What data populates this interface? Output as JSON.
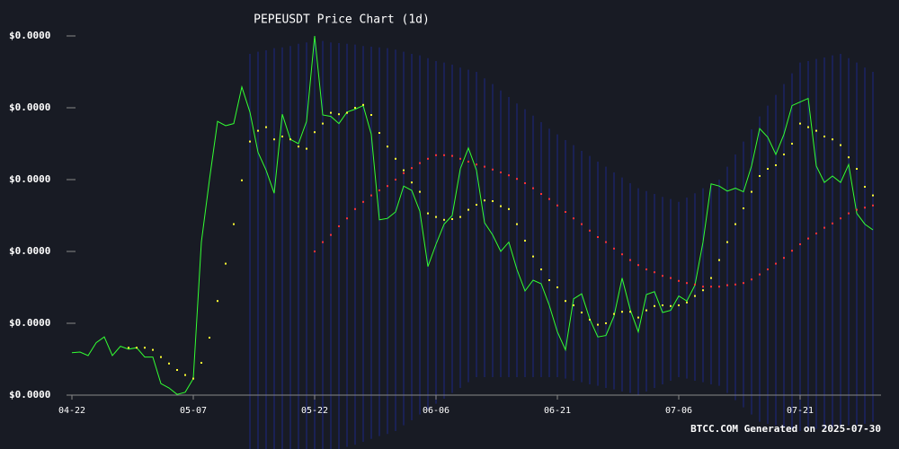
{
  "chart_data": {
    "type": "line",
    "title": "PEPEUSDT Price Chart (1d)",
    "annotation": "BTCC.COM Generated on 2025-07-30",
    "x": [
      "04-22",
      "04-23",
      "04-24",
      "04-25",
      "04-26",
      "04-27",
      "04-28",
      "04-29",
      "04-30",
      "05-01",
      "05-02",
      "05-03",
      "05-04",
      "05-05",
      "05-06",
      "05-07",
      "05-08",
      "05-09",
      "05-10",
      "05-11",
      "05-12",
      "05-13",
      "05-14",
      "05-15",
      "05-16",
      "05-17",
      "05-18",
      "05-19",
      "05-20",
      "05-21",
      "05-22",
      "05-23",
      "05-24",
      "05-25",
      "05-26",
      "05-27",
      "05-28",
      "05-29",
      "05-30",
      "05-31",
      "06-01",
      "06-02",
      "06-03",
      "06-04",
      "06-05",
      "06-06",
      "06-07",
      "06-08",
      "06-09",
      "06-10",
      "06-11",
      "06-12",
      "06-13",
      "06-14",
      "06-15",
      "06-16",
      "06-17",
      "06-18",
      "06-19",
      "06-20",
      "06-21",
      "06-22",
      "06-23",
      "06-24",
      "06-25",
      "06-26",
      "06-27",
      "06-28",
      "06-29",
      "06-30",
      "07-01",
      "07-02",
      "07-03",
      "07-04",
      "07-05",
      "07-06",
      "07-07",
      "07-08",
      "07-09",
      "07-10",
      "07-11",
      "07-12",
      "07-13",
      "07-14",
      "07-15",
      "07-16",
      "07-17",
      "07-18",
      "07-19",
      "07-20",
      "07-21",
      "07-22",
      "07-23",
      "07-24",
      "07-25",
      "07-26",
      "07-27",
      "07-28",
      "07-29",
      "07-30"
    ],
    "xticks": [
      "04-22",
      "05-07",
      "05-22",
      "06-06",
      "06-21",
      "07-06",
      "07-21"
    ],
    "ylim": [
      8e-06,
      1.3e-05
    ],
    "yticks": [
      {
        "value": 8e-06,
        "label": "$0.0000"
      },
      {
        "value": 9e-06,
        "label": "$0.0000"
      },
      {
        "value": 1e-05,
        "label": "$0.0000"
      },
      {
        "value": 1.1e-05,
        "label": "$0.0000"
      },
      {
        "value": 1.2e-05,
        "label": "$0.0000"
      },
      {
        "value": 1.3e-05,
        "label": "$0.0000"
      }
    ],
    "grid": false,
    "series": [
      {
        "style": "line",
        "color": "#33ff33",
        "values": [
          8.59e-06,
          8.6e-06,
          8.55e-06,
          8.73e-06,
          8.81e-06,
          8.55e-06,
          8.68e-06,
          8.64e-06,
          8.66e-06,
          8.53e-06,
          8.53e-06,
          8.16e-06,
          8.1e-06,
          8.01e-06,
          8.04e-06,
          8.23e-06,
          1.013e-05,
          1.1e-05,
          1.181e-05,
          1.175e-05,
          1.178e-05,
          1.229e-05,
          1.194e-05,
          1.138e-05,
          1.113e-05,
          1.081e-05,
          1.191e-05,
          1.156e-05,
          1.15e-05,
          1.181e-05,
          1.3e-05,
          1.19e-05,
          1.188e-05,
          1.178e-05,
          1.194e-05,
          1.198e-05,
          1.203e-05,
          1.163e-05,
          1.044e-05,
          1.046e-05,
          1.055e-05,
          1.091e-05,
          1.085e-05,
          1.056e-05,
          9.79e-06,
          1.01e-05,
          1.038e-05,
          1.05e-05,
          1.115e-05,
          1.144e-05,
          1.113e-05,
          1.04e-05,
          1.023e-05,
          1e-05,
          1.013e-05,
          9.75e-06,
          9.45e-06,
          9.6e-06,
          9.55e-06,
          9.25e-06,
          8.88e-06,
          8.63e-06,
          9.34e-06,
          9.41e-06,
          9.06e-06,
          8.81e-06,
          8.83e-06,
          9.1e-06,
          9.63e-06,
          9.19e-06,
          8.88e-06,
          9.4e-06,
          9.44e-06,
          9.15e-06,
          9.18e-06,
          9.38e-06,
          9.31e-06,
          9.53e-06,
          1.013e-05,
          1.094e-05,
          1.091e-05,
          1.084e-05,
          1.088e-05,
          1.083e-05,
          1.119e-05,
          1.171e-05,
          1.159e-05,
          1.135e-05,
          1.163e-05,
          1.203e-05,
          1.208e-05,
          1.213e-05,
          1.119e-05,
          1.096e-05,
          1.105e-05,
          1.096e-05,
          1.121e-05,
          1.053e-05,
          1.038e-05,
          1.03e-05
        ]
      },
      {
        "style": "dots",
        "color": "#ffff33",
        "values": [
          null,
          null,
          null,
          null,
          null,
          null,
          null,
          8.66e-06,
          8.66e-06,
          8.66e-06,
          8.63e-06,
          8.53e-06,
          8.44e-06,
          8.35e-06,
          8.28e-06,
          8.23e-06,
          8.45e-06,
          8.8e-06,
          9.31e-06,
          9.83e-06,
          1.038e-05,
          1.099e-05,
          1.153e-05,
          1.168e-05,
          1.173e-05,
          1.156e-05,
          1.16e-05,
          1.156e-05,
          1.146e-05,
          1.143e-05,
          1.166e-05,
          1.178e-05,
          1.193e-05,
          1.191e-05,
          1.193e-05,
          1.2e-05,
          1.204e-05,
          1.19e-05,
          1.165e-05,
          1.146e-05,
          1.129e-05,
          1.113e-05,
          1.096e-05,
          1.083e-05,
          1.053e-05,
          1.048e-05,
          1.044e-05,
          1.045e-05,
          1.048e-05,
          1.058e-05,
          1.065e-05,
          1.071e-05,
          1.07e-05,
          1.063e-05,
          1.059e-05,
          1.038e-05,
          1.015e-05,
          9.93e-06,
          9.75e-06,
          9.6e-06,
          9.5e-06,
          9.31e-06,
          9.25e-06,
          9.15e-06,
          9.05e-06,
          8.98e-06,
          9e-06,
          9.13e-06,
          9.16e-06,
          9.16e-06,
          9.08e-06,
          9.18e-06,
          9.24e-06,
          9.25e-06,
          9.24e-06,
          9.25e-06,
          9.29e-06,
          9.38e-06,
          9.46e-06,
          9.63e-06,
          9.88e-06,
          1.013e-05,
          1.038e-05,
          1.06e-05,
          1.083e-05,
          1.105e-05,
          1.115e-05,
          1.12e-05,
          1.135e-05,
          1.15e-05,
          1.178e-05,
          1.173e-05,
          1.168e-05,
          1.16e-05,
          1.156e-05,
          1.148e-05,
          1.131e-05,
          1.115e-05,
          1.09e-05,
          1.078e-05
        ]
      },
      {
        "style": "dots",
        "color": "#ff3333",
        "values": [
          null,
          null,
          null,
          null,
          null,
          null,
          null,
          null,
          null,
          null,
          null,
          null,
          null,
          null,
          null,
          null,
          null,
          null,
          null,
          null,
          null,
          null,
          null,
          null,
          null,
          null,
          null,
          null,
          null,
          null,
          1e-05,
          1.013e-05,
          1.023e-05,
          1.035e-05,
          1.046e-05,
          1.059e-05,
          1.069e-05,
          1.078e-05,
          1.085e-05,
          1.091e-05,
          1.1e-05,
          1.109e-05,
          1.116e-05,
          1.123e-05,
          1.129e-05,
          1.134e-05,
          1.134e-05,
          1.133e-05,
          1.129e-05,
          1.125e-05,
          1.121e-05,
          1.118e-05,
          1.114e-05,
          1.11e-05,
          1.106e-05,
          1.101e-05,
          1.095e-05,
          1.088e-05,
          1.08e-05,
          1.073e-05,
          1.064e-05,
          1.055e-05,
          1.046e-05,
          1.038e-05,
          1.029e-05,
          1.02e-05,
          1.013e-05,
          1.004e-05,
          9.96e-06,
          9.88e-06,
          9.81e-06,
          9.75e-06,
          9.71e-06,
          9.66e-06,
          9.63e-06,
          9.59e-06,
          9.56e-06,
          9.54e-06,
          9.51e-06,
          9.51e-06,
          9.51e-06,
          9.53e-06,
          9.54e-06,
          9.56e-06,
          9.61e-06,
          9.68e-06,
          9.75e-06,
          9.83e-06,
          9.91e-06,
          1.001e-05,
          1.01e-05,
          1.018e-05,
          1.025e-05,
          1.033e-05,
          1.039e-05,
          1.046e-05,
          1.053e-05,
          1.058e-05,
          1.061e-05,
          1.064e-05
        ]
      }
    ],
    "bands": {
      "color": "#1f2b8f",
      "upper": [
        null,
        null,
        null,
        null,
        null,
        null,
        null,
        null,
        null,
        null,
        null,
        null,
        null,
        null,
        null,
        null,
        null,
        null,
        null,
        null,
        null,
        null,
        1.275e-05,
        1.278e-05,
        1.28e-05,
        1.283e-05,
        1.284e-05,
        1.286e-05,
        1.289e-05,
        1.291e-05,
        1.294e-05,
        1.293e-05,
        1.291e-05,
        1.29e-05,
        1.289e-05,
        1.288e-05,
        1.286e-05,
        1.285e-05,
        1.284e-05,
        1.283e-05,
        1.281e-05,
        1.278e-05,
        1.275e-05,
        1.273e-05,
        1.269e-05,
        1.265e-05,
        1.263e-05,
        1.26e-05,
        1.256e-05,
        1.253e-05,
        1.25e-05,
        1.241e-05,
        1.233e-05,
        1.224e-05,
        1.215e-05,
        1.206e-05,
        1.198e-05,
        1.189e-05,
        1.18e-05,
        1.171e-05,
        1.163e-05,
        1.155e-05,
        1.148e-05,
        1.14e-05,
        1.133e-05,
        1.125e-05,
        1.118e-05,
        1.11e-05,
        1.103e-05,
        1.095e-05,
        1.088e-05,
        1.084e-05,
        1.08e-05,
        1.076e-05,
        1.073e-05,
        1.069e-05,
        1.075e-05,
        1.081e-05,
        1.088e-05,
        1.094e-05,
        1.1e-05,
        1.118e-05,
        1.135e-05,
        1.153e-05,
        1.17e-05,
        1.188e-05,
        1.203e-05,
        1.218e-05,
        1.233e-05,
        1.248e-05,
        1.263e-05,
        1.265e-05,
        1.268e-05,
        1.27e-05,
        1.273e-05,
        1.275e-05,
        1.269e-05,
        1.263e-05,
        1.256e-05,
        1.25e-05
      ],
      "lower": [
        null,
        null,
        null,
        null,
        null,
        null,
        null,
        null,
        null,
        null,
        null,
        null,
        null,
        null,
        null,
        null,
        null,
        null,
        null,
        null,
        null,
        null,
        7.25e-06,
        7.24e-06,
        7.21e-06,
        7.2e-06,
        7.19e-06,
        7.18e-06,
        7.15e-06,
        7.14e-06,
        7.13e-06,
        7.16e-06,
        7.2e-06,
        7.24e-06,
        7.28e-06,
        7.31e-06,
        7.35e-06,
        7.39e-06,
        7.43e-06,
        7.46e-06,
        7.5e-06,
        7.58e-06,
        7.65e-06,
        7.73e-06,
        7.8e-06,
        7.88e-06,
        7.95e-06,
        8.03e-06,
        8.1e-06,
        8.18e-06,
        8.25e-06,
        8.25e-06,
        8.25e-06,
        8.25e-06,
        8.25e-06,
        8.25e-06,
        8.25e-06,
        8.25e-06,
        8.25e-06,
        8.25e-06,
        8.25e-06,
        8.23e-06,
        8.2e-06,
        8.18e-06,
        8.15e-06,
        8.13e-06,
        8.1e-06,
        8.08e-06,
        8.05e-06,
        8.03e-06,
        8e-06,
        8.05e-06,
        8.1e-06,
        8.15e-06,
        8.2e-06,
        8.25e-06,
        8.23e-06,
        8.2e-06,
        8.18e-06,
        8.15e-06,
        8.13e-06,
        8.03e-06,
        7.93e-06,
        7.83e-06,
        7.73e-06,
        7.63e-06,
        7.6e-06,
        7.58e-06,
        7.55e-06,
        7.53e-06,
        7.5e-06,
        7.51e-06,
        7.53e-06,
        7.54e-06,
        7.55e-06,
        7.56e-06,
        7.58e-06,
        7.59e-06,
        7.6e-06,
        7.63e-06
      ]
    }
  }
}
